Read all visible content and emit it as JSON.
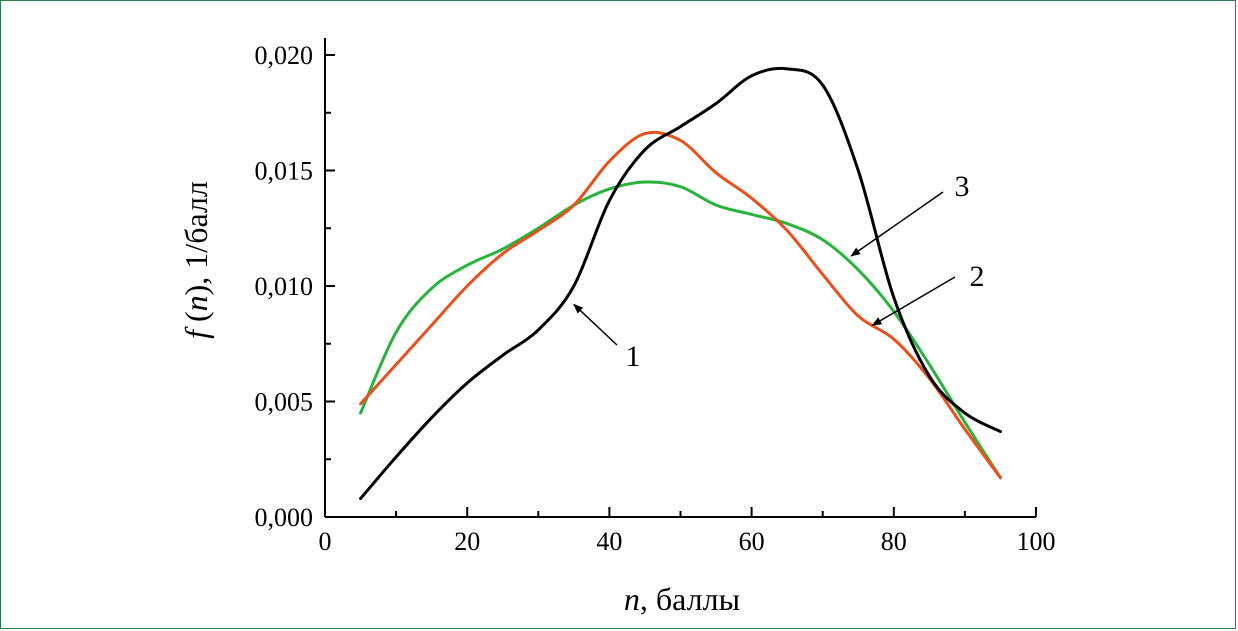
{
  "chart_data": {
    "type": "line",
    "xlabel": {
      "var": "n",
      "text": ", баллы"
    },
    "ylabel": {
      "func": "f",
      "open": " (",
      "var": "n",
      "close": "), 1/балл"
    },
    "xlim": [
      0,
      100
    ],
    "ylim": [
      0,
      0.02
    ],
    "xticks": [
      0,
      20,
      40,
      60,
      80,
      100
    ],
    "yticks": [
      0,
      0.005,
      0.01,
      0.015,
      0.02
    ],
    "xtick_labels": [
      "0",
      "20",
      "40",
      "60",
      "80",
      "100"
    ],
    "ytick_labels": [
      "0,000",
      "0,005",
      "0,010",
      "0,015",
      "0,020"
    ],
    "series": [
      {
        "label": "1",
        "color": "#000000",
        "x": [
          5,
          10,
          15,
          20,
          25,
          30,
          35,
          40,
          45,
          50,
          55,
          60,
          65,
          70,
          75,
          80,
          85,
          90,
          95
        ],
        "y": [
          0.0008,
          0.0026,
          0.0043,
          0.0058,
          0.007,
          0.0081,
          0.01,
          0.0137,
          0.0159,
          0.0169,
          0.0179,
          0.0191,
          0.0194,
          0.0187,
          0.015,
          0.0095,
          0.0061,
          0.0045,
          0.0037
        ]
      },
      {
        "label": "2",
        "color": "#e8501e",
        "x": [
          5,
          10,
          15,
          20,
          25,
          30,
          35,
          40,
          45,
          50,
          55,
          60,
          65,
          70,
          75,
          80,
          85,
          90,
          95
        ],
        "y": [
          0.0049,
          0.0066,
          0.0083,
          0.01,
          0.0114,
          0.0124,
          0.0135,
          0.0154,
          0.0166,
          0.0163,
          0.0149,
          0.0138,
          0.0124,
          0.0105,
          0.0087,
          0.0077,
          0.006,
          0.0038,
          0.0017
        ]
      },
      {
        "label": "3",
        "color": "#28b43c",
        "x": [
          5,
          10,
          15,
          20,
          25,
          30,
          35,
          40,
          45,
          50,
          55,
          60,
          65,
          70,
          75,
          80,
          85,
          90,
          95
        ],
        "y": [
          0.0045,
          0.008,
          0.0099,
          0.0109,
          0.0116,
          0.0125,
          0.0135,
          0.0142,
          0.0145,
          0.0143,
          0.0135,
          0.0131,
          0.0127,
          0.012,
          0.0107,
          0.0089,
          0.0066,
          0.0041,
          0.0017
        ]
      }
    ],
    "annotations": [
      {
        "text": "1",
        "arrow_to": [
          35,
          0.0092
        ]
      },
      {
        "text": "2",
        "arrow_to": [
          77,
          0.0083
        ]
      },
      {
        "text": "3",
        "arrow_to": [
          74,
          0.0113
        ]
      }
    ],
    "grid": false,
    "legend": "none"
  }
}
